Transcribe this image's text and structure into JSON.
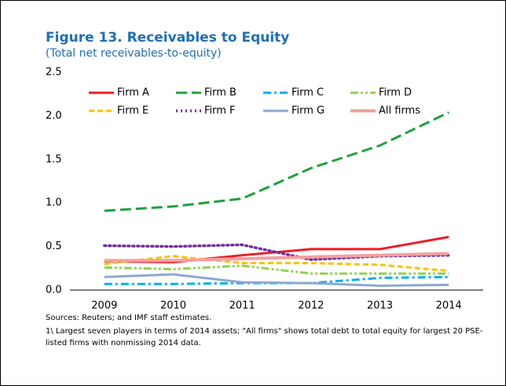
{
  "chart_data": {
    "type": "line",
    "title": "Figure 13. Receivables to Equity",
    "subtitle": "(Total net receivables-to-equity)",
    "categories": [
      "2009",
      "2010",
      "2011",
      "2012",
      "2013",
      "2014"
    ],
    "series": [
      {
        "name": "Firm A",
        "color": "#ee1c25",
        "style": "solid",
        "values": [
          0.33,
          0.32,
          0.4,
          0.47,
          0.47,
          0.61
        ]
      },
      {
        "name": "Firm B",
        "color": "#1fa23a",
        "style": "long-dash",
        "values": [
          0.91,
          0.96,
          1.05,
          1.4,
          1.66,
          2.04
        ]
      },
      {
        "name": "Firm C",
        "color": "#00b0f0",
        "style": "dash-dot",
        "values": [
          0.07,
          0.07,
          0.08,
          0.08,
          0.14,
          0.15
        ]
      },
      {
        "name": "Firm D",
        "color": "#92d050",
        "style": "dash-dot-dot",
        "values": [
          0.26,
          0.24,
          0.28,
          0.19,
          0.19,
          0.19
        ]
      },
      {
        "name": "Firm E",
        "color": "#ffc000",
        "style": "dashed",
        "values": [
          0.3,
          0.39,
          0.31,
          0.31,
          0.29,
          0.22
        ]
      },
      {
        "name": "Firm F",
        "color": "#7030a0",
        "style": "dotted",
        "values": [
          0.51,
          0.5,
          0.52,
          0.35,
          0.39,
          0.4
        ]
      },
      {
        "name": "Firm G",
        "color": "#8ea9cf",
        "style": "solid",
        "values": [
          0.15,
          0.18,
          0.09,
          0.08,
          0.05,
          0.06
        ]
      },
      {
        "name": "All firms",
        "color": "#f4a0a0",
        "style": "thick",
        "values": [
          0.34,
          0.34,
          0.36,
          0.38,
          0.4,
          0.42
        ]
      }
    ],
    "ylim": [
      0,
      2.5
    ],
    "yticks": [
      {
        "value": 0,
        "label": "0.0"
      },
      0.5,
      {
        "value": 1,
        "label": "1.0"
      },
      1.5,
      {
        "value": 2,
        "label": "2.0"
      },
      2.5
    ],
    "sources": "Sources: Reuters; and IMF staff estimates.",
    "note": "1\\ Largest seven players in terms of 2014 assets; \"All firms\" shows total debt to total equity for largest 20 PSE-listed firms with nonmissing 2014 data."
  }
}
